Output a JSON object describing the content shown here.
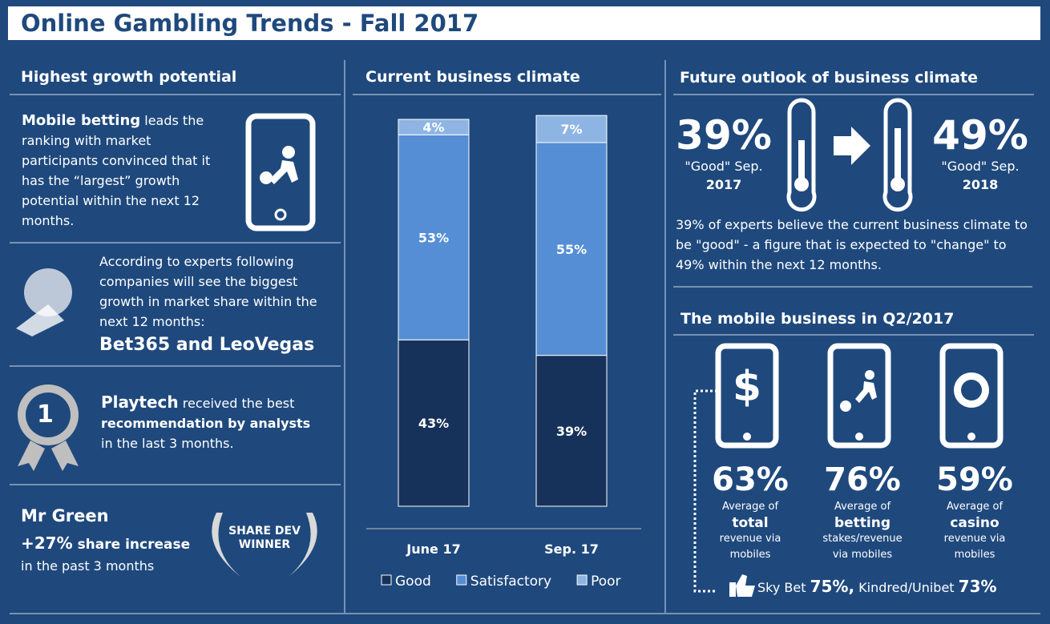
{
  "header": {
    "title": "Online Gambling Trends - Fall 2017"
  },
  "growth": {
    "heading": "Highest growth potential",
    "lead": "Mobile betting",
    "text": "leads the ranking with market participants convinced that it has the “largest” growth potential within the next 12 months."
  },
  "share": {
    "text": "According to experts following companies will see the biggest growth in market share within the next 12 months:",
    "highlight": "Bet365 and LeoVegas"
  },
  "playtech": {
    "badge": "1",
    "name": "Playtech",
    "text1": "received the best",
    "bold": "recommendation by analysts",
    "text2": "in the last 3 months."
  },
  "mrgreen": {
    "name": "Mr Green",
    "increase": "+27%",
    "increase_text": "share increase",
    "text": "in the past 3 months",
    "badge": [
      "SHARE DEV",
      "WINNER"
    ]
  },
  "chart_data": {
    "type": "bar",
    "stacked": true,
    "title": "Current business climate",
    "categories": [
      "June 17",
      "Sep. 17"
    ],
    "ylim": [
      0,
      100
    ],
    "series": [
      {
        "name": "Good",
        "color": "#17325a",
        "values": [
          43,
          39
        ],
        "value_labels": [
          "43%",
          "39%"
        ]
      },
      {
        "name": "Satisfactory",
        "color": "#558ed5",
        "values": [
          53,
          55
        ],
        "value_labels": [
          "53%",
          "55%"
        ]
      },
      {
        "name": "Poor",
        "color": "#8eb4e3",
        "values": [
          4,
          7
        ],
        "value_labels": [
          "4%",
          "7%"
        ]
      }
    ],
    "legend": "bottom"
  },
  "outlook": {
    "heading": "Future outlook of business climate",
    "now": {
      "value": "39%",
      "label": "\"Good\" Sep.",
      "year": "2017"
    },
    "next": {
      "value": "49%",
      "label": "\"Good\" Sep.",
      "year": "2018"
    },
    "text": "39% of experts believe the current business climate to be \"good\" - a figure that is expected to \"change\" to 49% within the next 12 months."
  },
  "mobile": {
    "heading": "The mobile business in Q2/2017",
    "items": [
      {
        "value": "63%",
        "line1": "Average of",
        "bold": "total",
        "line2": "revenue via mobiles"
      },
      {
        "value": "76%",
        "line1": "Average of",
        "bold": "betting",
        "line2": "stakes/revenue via mobiles"
      },
      {
        "value": "59%",
        "line1": "Average of",
        "bold": "casino",
        "line2": "revenue via mobiles"
      }
    ],
    "footer": {
      "a": "Sky Bet",
      "av": "75%,",
      "b": "Kindred/Unibet",
      "bv": "73%"
    }
  }
}
